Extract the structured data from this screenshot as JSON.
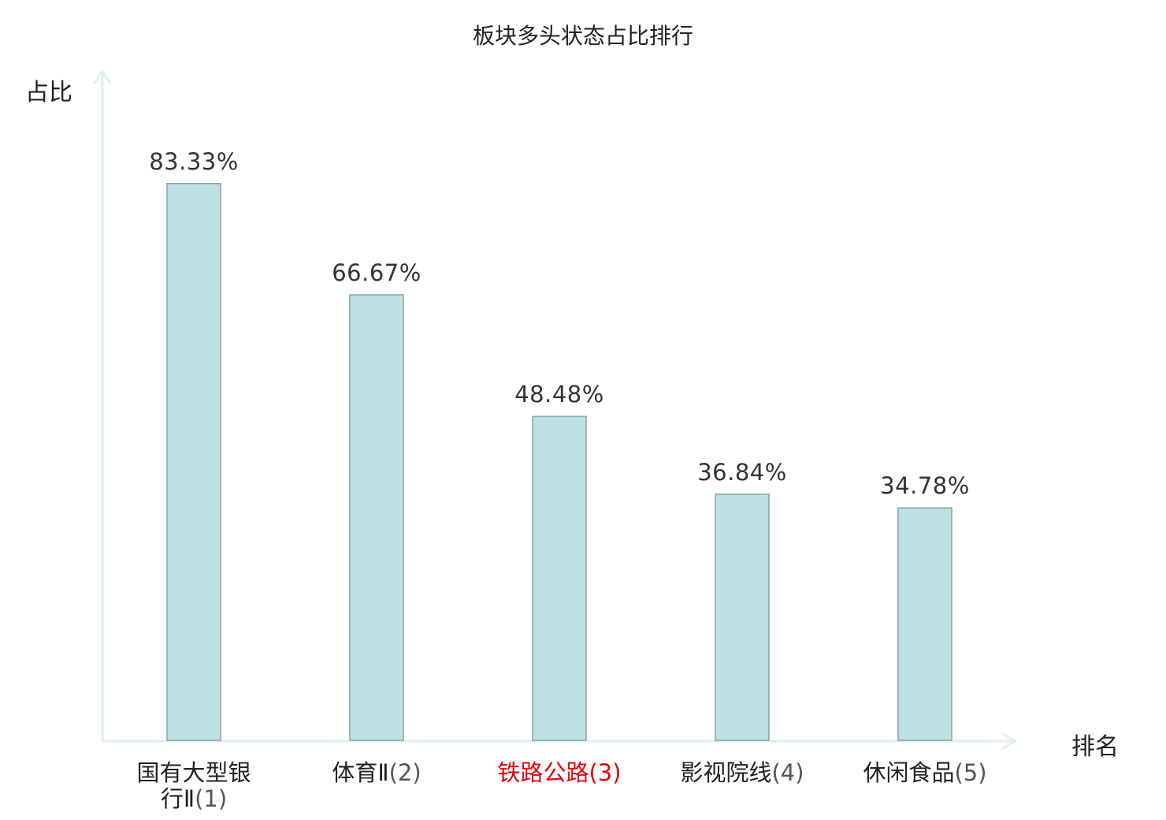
{
  "chart_data": {
    "type": "bar",
    "title": "板块多头状态占比排行",
    "ylabel": "占比",
    "xlabel": "排名",
    "categories": [
      {
        "name": "国有大型银行Ⅱ",
        "rank": "(1)",
        "highlight": false
      },
      {
        "name": "体育Ⅱ",
        "rank": "(2)",
        "highlight": false
      },
      {
        "name": "铁路公路",
        "rank": "(3)",
        "highlight": true
      },
      {
        "name": "影视院线",
        "rank": "(4)",
        "highlight": false
      },
      {
        "name": "休闲食品",
        "rank": "(5)",
        "highlight": false
      }
    ],
    "values": [
      83.33,
      66.67,
      48.48,
      36.84,
      34.78
    ],
    "value_labels": [
      "83.33%",
      "66.67%",
      "48.48%",
      "36.84%",
      "34.78%"
    ],
    "ylim": [
      0,
      100
    ],
    "grid": false,
    "colors": {
      "bar_fill": "#bde0e2",
      "bar_stroke": "#84a4a6",
      "axis": "#dff1ef",
      "highlight_label": "#e8000b",
      "value_label": "#333333"
    }
  }
}
